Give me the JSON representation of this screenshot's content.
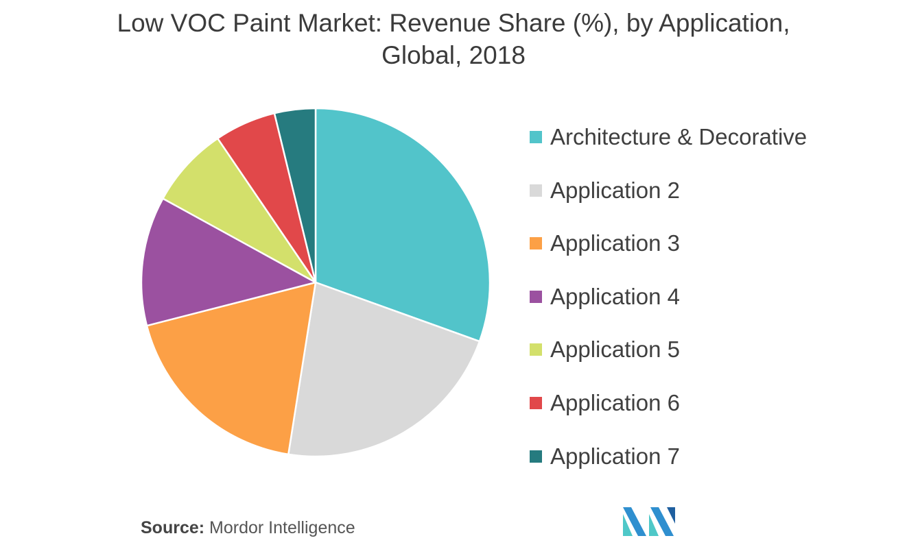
{
  "title": {
    "line1": "Low VOC Paint Market: Revenue Share (%), by Application,",
    "line2": "Global, 2018"
  },
  "source": {
    "label": "Source:",
    "text": "Mordor Intelligence"
  },
  "chart_data": {
    "type": "pie",
    "start_angle_deg": 0,
    "direction": "clockwise",
    "slices": [
      {
        "name": "Architecture & Decorative",
        "value": 30.5,
        "color": "#52c4ca"
      },
      {
        "name": "Application 2",
        "value": 22.0,
        "color": "#d9d9d9"
      },
      {
        "name": "Application 3",
        "value": 18.5,
        "color": "#fca046"
      },
      {
        "name": "Application 4",
        "value": 12.0,
        "color": "#9b51a0"
      },
      {
        "name": "Application 5",
        "value": 7.5,
        "color": "#d3e06b"
      },
      {
        "name": "Application 6",
        "value": 5.7,
        "color": "#e1484a"
      },
      {
        "name": "Application 7",
        "value": 3.8,
        "color": "#267b7f"
      }
    ],
    "legend_position": "right"
  },
  "logo": {
    "colors": [
      "#2f8fcf",
      "#4fc8c8",
      "#1f5f9f"
    ]
  }
}
